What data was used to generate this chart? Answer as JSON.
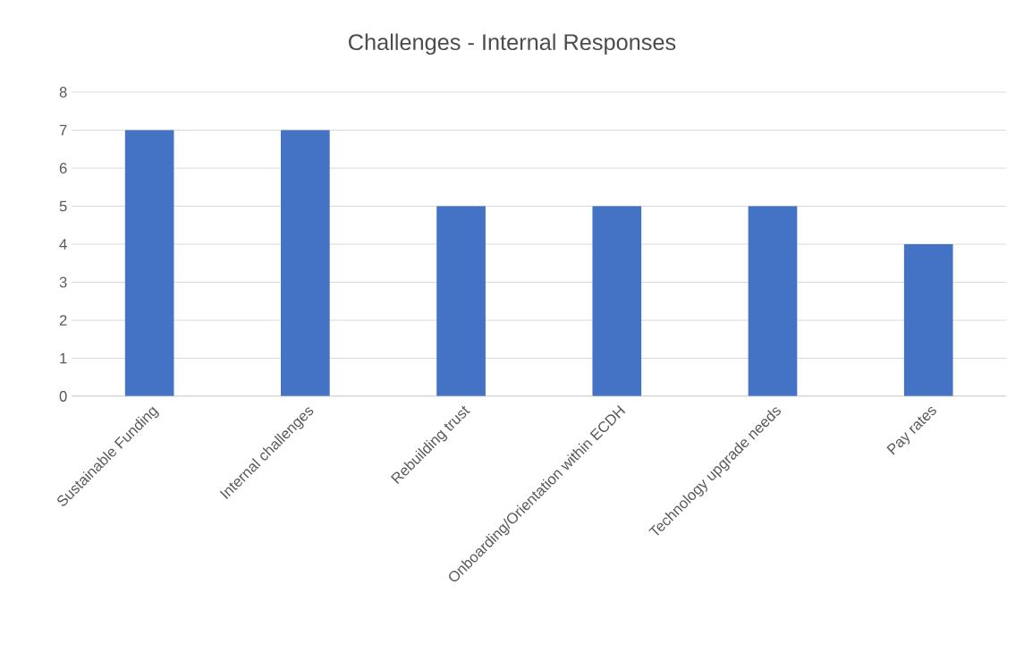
{
  "chart_data": {
    "type": "bar",
    "title": "Challenges - Internal Responses",
    "categories": [
      "Sustainable Funding",
      "Internal challenges",
      "Rebuilding trust",
      "Onboarding/Orientation within ECDH",
      "Technology upgrade needs",
      "Pay rates"
    ],
    "values": [
      7,
      7,
      5,
      5,
      5,
      4
    ],
    "color": "#4472c4",
    "ylim": [
      0,
      8
    ],
    "yticks": [
      0,
      1,
      2,
      3,
      4,
      5,
      6,
      7,
      8
    ],
    "grid": "y"
  }
}
